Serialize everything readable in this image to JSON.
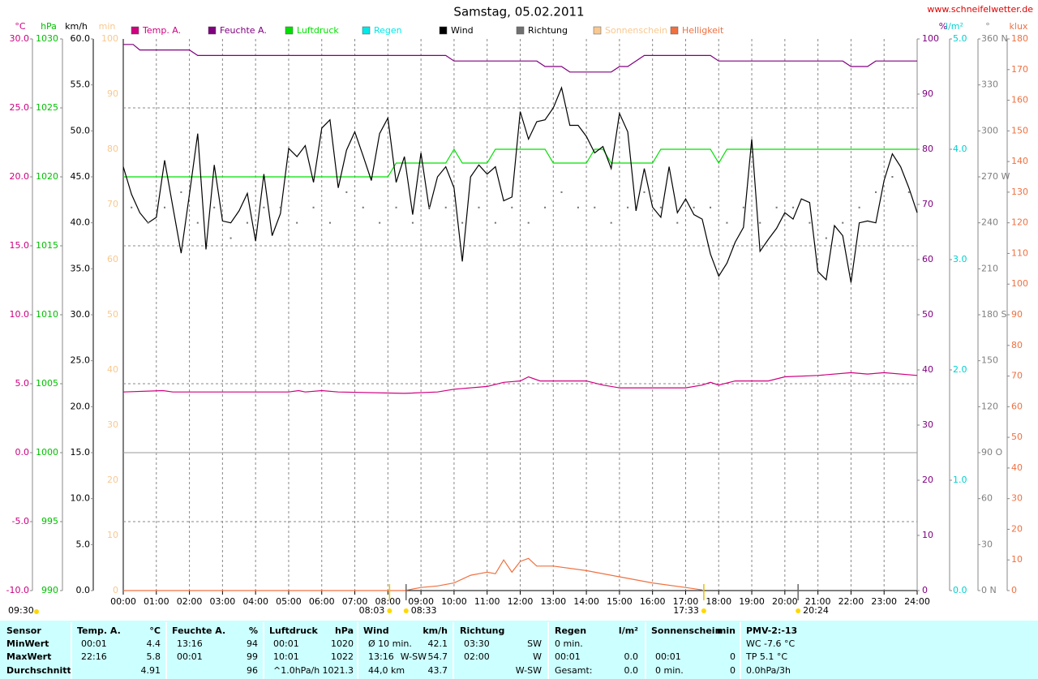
{
  "chart_data": {
    "type": "line",
    "title": "Samstag, 05.02.2011",
    "source": "www.schneifelwetter.de",
    "time_label": "09:30",
    "xlim": [
      0,
      24
    ],
    "xticks": [
      {
        "value": 0,
        "label": "00:00"
      },
      {
        "value": 1,
        "label": "01:00"
      },
      {
        "value": 2,
        "label": "02:00"
      },
      {
        "value": 3,
        "label": "03:00"
      },
      {
        "value": 4,
        "label": "04:00"
      },
      {
        "value": 5,
        "label": "05:00"
      },
      {
        "value": 6,
        "label": "06:00"
      },
      {
        "value": 7,
        "label": "07:00"
      },
      {
        "value": 8,
        "label": "08:00"
      },
      {
        "value": 9,
        "label": "09:00"
      },
      {
        "value": 10,
        "label": "10:00"
      },
      {
        "value": 11,
        "label": "11:00"
      },
      {
        "value": 12,
        "label": "12:00"
      },
      {
        "value": 13,
        "label": "13:00"
      },
      {
        "value": 14,
        "label": "14:00"
      },
      {
        "value": 15,
        "label": "15:00"
      },
      {
        "value": 16,
        "label": "16:00"
      },
      {
        "value": 17,
        "label": "17:00"
      },
      {
        "value": 18,
        "label": "18:00"
      },
      {
        "value": 19,
        "label": "19:00"
      },
      {
        "value": 20,
        "label": "20:00"
      },
      {
        "value": 21,
        "label": "21:00"
      },
      {
        "value": 22,
        "label": "22:00"
      },
      {
        "value": 23,
        "label": "23:00"
      },
      {
        "value": 24,
        "label": "24:00"
      }
    ],
    "grid": true,
    "axes": [
      {
        "unit": "°C",
        "color": "#cc0080",
        "lim": [
          -10,
          30
        ],
        "ticks": [
          {
            "value": 30,
            "label": "30.0"
          },
          {
            "value": 25,
            "label": "25.0"
          },
          {
            "value": 20,
            "label": "20.0"
          },
          {
            "value": 15,
            "label": "15.0"
          },
          {
            "value": 10,
            "label": "10.0"
          },
          {
            "value": 5,
            "label": "5.0"
          },
          {
            "value": 0,
            "label": "0.0"
          },
          {
            "value": -5,
            "label": "-5.0"
          },
          {
            "value": -10,
            "label": "-10.0"
          }
        ]
      },
      {
        "unit": "hPa",
        "color": "#00c000",
        "lim": [
          990,
          1030
        ],
        "ticks": [
          1030,
          1025,
          1020,
          1015,
          1010,
          1005,
          1000,
          995,
          990
        ]
      },
      {
        "unit": "km/h",
        "color": "#000000",
        "lim": [
          0,
          60
        ],
        "ticks": [
          {
            "value": 60,
            "label": "60.0"
          },
          {
            "value": 55,
            "label": "55.0"
          },
          {
            "value": 50,
            "label": "50.0"
          },
          {
            "value": 45,
            "label": "45.0"
          },
          {
            "value": 40,
            "label": "40.0"
          },
          {
            "value": 35,
            "label": "35.0"
          },
          {
            "value": 30,
            "label": "30.0"
          },
          {
            "value": 25,
            "label": "25.0"
          },
          {
            "value": 20,
            "label": "20.0"
          },
          {
            "value": 15,
            "label": "15.0"
          },
          {
            "value": 10,
            "label": "10.0"
          },
          {
            "value": 5,
            "label": "5.0"
          },
          {
            "value": 0,
            "label": "0.0"
          }
        ]
      },
      {
        "unit": "min",
        "color": "#f8c890",
        "lim": [
          0,
          100
        ],
        "ticks": [
          100,
          90,
          80,
          70,
          60,
          50,
          40,
          30,
          20,
          10,
          0
        ]
      },
      {
        "unit": "%",
        "color": "#800080",
        "lim": [
          0,
          100
        ],
        "ticks": [
          100,
          90,
          80,
          70,
          60,
          50,
          40,
          30,
          20,
          10,
          0
        ]
      },
      {
        "unit": "l/m²",
        "color": "#00d0d0",
        "lim": [
          0,
          5
        ],
        "ticks": [
          {
            "value": 5,
            "label": "5.0"
          },
          {
            "value": 4,
            "label": "4.0"
          },
          {
            "value": 3,
            "label": "3.0"
          },
          {
            "value": 2,
            "label": "2.0"
          },
          {
            "value": 1,
            "label": "1.0"
          },
          {
            "value": 0,
            "label": "0.0"
          }
        ]
      },
      {
        "unit": "°",
        "color": "#808080",
        "lim": [
          0,
          360
        ],
        "ticks": [
          {
            "value": 360,
            "label": "360 N"
          },
          330,
          300,
          {
            "value": 270,
            "label": "270 W"
          },
          240,
          210,
          {
            "value": 180,
            "label": "180 S"
          },
          150,
          120,
          {
            "value": 90,
            "label": "90 O"
          },
          60,
          30,
          {
            "value": 0,
            "label": "0 N"
          }
        ]
      },
      {
        "unit": "klux",
        "color": "#f07040",
        "lim": [
          0,
          180
        ],
        "ticks": [
          180,
          170,
          160,
          150,
          140,
          130,
          120,
          110,
          100,
          90,
          80,
          70,
          60,
          50,
          40,
          30,
          20,
          10,
          0
        ]
      }
    ],
    "series": [
      {
        "name": "Temp. A.",
        "color": "#d00080",
        "axis": 0,
        "type": "line",
        "x": [
          0,
          1.2,
          1.5,
          5,
          5.3,
          5.5,
          6,
          6.5,
          8.5,
          9.5,
          10,
          11,
          11.5,
          12,
          12.25,
          12.6,
          14,
          14.5,
          15,
          17,
          17.5,
          17.75,
          18,
          18.5,
          19.5,
          20,
          21,
          22,
          22.5,
          23,
          24
        ],
        "values": [
          4.4,
          4.5,
          4.4,
          4.4,
          4.5,
          4.4,
          4.5,
          4.4,
          4.3,
          4.4,
          4.6,
          4.8,
          5.1,
          5.2,
          5.5,
          5.2,
          5.2,
          4.9,
          4.7,
          4.7,
          4.9,
          5.1,
          4.9,
          5.2,
          5.2,
          5.5,
          5.6,
          5.8,
          5.7,
          5.8,
          5.6
        ]
      },
      {
        "name": "Feuchte A.",
        "color": "#800080",
        "axis": 4,
        "type": "line",
        "x": [
          0,
          0.3,
          0.5,
          2,
          2.25,
          9.75,
          10,
          12.5,
          12.75,
          13.25,
          13.5,
          14.75,
          15,
          15.25,
          15.75,
          17.75,
          18,
          21.75,
          22,
          22.5,
          22.75,
          24
        ],
        "values": [
          99,
          99,
          98,
          98,
          97,
          97,
          96,
          96,
          95,
          95,
          94,
          94,
          95,
          95,
          97,
          97,
          96,
          96,
          95,
          95,
          96,
          96
        ]
      },
      {
        "name": "Luftdruck",
        "color": "#00e000",
        "axis": 1,
        "type": "line",
        "x": [
          0,
          8,
          8.25,
          9.75,
          10,
          10.25,
          11,
          11.25,
          12.75,
          13,
          14,
          14.25,
          14.5,
          14.75,
          16,
          16.25,
          17.75,
          18,
          18.25,
          24
        ],
        "values": [
          1020,
          1020,
          1021,
          1021,
          1022,
          1021,
          1021,
          1022,
          1022,
          1021,
          1021,
          1022,
          1022,
          1021,
          1021,
          1022,
          1022,
          1021,
          1022,
          1022
        ]
      },
      {
        "name": "Regen",
        "color": "#00e8e8",
        "axis": 5,
        "type": "line"
      },
      {
        "name": "Wind",
        "color": "#000000",
        "axis": 2,
        "type": "line",
        "x": [
          0,
          0.25,
          0.5,
          0.75,
          1,
          1.25,
          1.5,
          1.75,
          2,
          2.25,
          2.5,
          2.75,
          3,
          3.25,
          3.5,
          3.75,
          4,
          4.25,
          4.5,
          4.75,
          5,
          5.25,
          5.5,
          5.75,
          6,
          6.25,
          6.5,
          6.75,
          7,
          7.25,
          7.5,
          7.75,
          8,
          8.25,
          8.5,
          8.75,
          9,
          9.25,
          9.5,
          9.75,
          10,
          10.25,
          10.5,
          10.75,
          11,
          11.25,
          11.5,
          11.75,
          12,
          12.25,
          12.5,
          12.75,
          13,
          13.25,
          13.5,
          13.75,
          14,
          14.25,
          14.5,
          14.75,
          15,
          15.25,
          15.5,
          15.75,
          16,
          16.25,
          16.5,
          16.75,
          17,
          17.25,
          17.5,
          17.75,
          18,
          18.25,
          18.5,
          18.75,
          19,
          19.25,
          19.5,
          19.75,
          20,
          20.25,
          20.5,
          20.75,
          21,
          21.25,
          21.5,
          21.75,
          22,
          22.25,
          22.5,
          22.75,
          23,
          23.25,
          23.5,
          23.75,
          24
        ],
        "values": [
          46.1,
          43.1,
          41.1,
          40.0,
          40.6,
          46.8,
          41.7,
          36.7,
          43.1,
          49.7,
          37.1,
          46.3,
          40.2,
          40.0,
          41.3,
          43.2,
          38.0,
          45.3,
          38.6,
          41.0,
          48.1,
          47.2,
          48.4,
          44.4,
          50.3,
          51.2,
          43.8,
          47.9,
          49.9,
          47.3,
          44.6,
          49.7,
          51.4,
          44.4,
          47.2,
          40.9,
          47.6,
          41.5,
          45.0,
          46.1,
          43.8,
          35.8,
          45.0,
          46.3,
          45.3,
          46.1,
          42.4,
          42.8,
          52.1,
          49.1,
          51.0,
          51.2,
          52.5,
          54.7,
          50.6,
          50.6,
          49.4,
          47.6,
          48.3,
          45.9,
          51.9,
          49.9,
          41.3,
          45.9,
          41.7,
          40.6,
          46.1,
          41.1,
          42.6,
          40.9,
          40.4,
          36.6,
          34.2,
          35.6,
          37.9,
          39.5,
          49.1,
          36.9,
          38.2,
          39.4,
          41.1,
          40.4,
          42.6,
          42.2,
          34.7,
          33.8,
          39.7,
          38.6,
          33.5,
          40.0,
          40.2,
          40.0,
          44.6,
          47.5,
          46.1,
          43.8,
          41.1
        ]
      },
      {
        "name": "Richtung",
        "color": "#707070",
        "axis": 6,
        "type": "scatter",
        "x": [
          0.25,
          0.75,
          1.25,
          1.75,
          2.25,
          2.75,
          3.25,
          3.75,
          4.25,
          4.75,
          5.25,
          5.75,
          6.25,
          6.75,
          7.25,
          7.75,
          8.25,
          8.75,
          9.25,
          9.75,
          10.25,
          10.75,
          11.25,
          11.75,
          12.25,
          12.75,
          13.25,
          13.75,
          14.25,
          14.75,
          15.25,
          15.75,
          16.25,
          16.75,
          17.25,
          17.75,
          18.25,
          18.75,
          19.25,
          19.75,
          20.25,
          20.75,
          21.25,
          21.75,
          22.25,
          22.75,
          23.25,
          23.75
        ],
        "values": [
          250,
          240,
          250,
          260,
          240,
          250,
          230,
          240,
          250,
          250,
          240,
          250,
          240,
          260,
          250,
          240,
          250,
          240,
          250,
          250,
          240,
          250,
          240,
          250,
          240,
          250,
          260,
          250,
          250,
          240,
          250,
          260,
          250,
          240,
          250,
          250,
          240,
          250,
          240,
          250,
          250,
          240,
          230,
          240,
          250,
          260,
          270,
          260
        ]
      },
      {
        "name": "Sonnenschein",
        "color": "#f8c890",
        "axis": 3,
        "type": "line"
      },
      {
        "name": "Helligkeit",
        "color": "#f07040",
        "axis": 7,
        "type": "line",
        "x": [
          0,
          8.5,
          9,
          9.5,
          10,
          10.5,
          11,
          11.25,
          11.5,
          11.75,
          12,
          12.25,
          12.5,
          13,
          14,
          15,
          16,
          17,
          17.5
        ],
        "values": [
          0,
          0,
          1,
          1.5,
          2.5,
          5,
          6,
          5.5,
          10,
          6,
          9.5,
          10.5,
          8,
          8,
          6.5,
          4.5,
          2.5,
          1,
          0.2
        ]
      }
    ],
    "annotations": [
      {
        "x": 8.05,
        "label": "08:03"
      },
      {
        "x": 8.55,
        "label": "08:33"
      },
      {
        "x": 17.55,
        "label": "17:33"
      },
      {
        "x": 20.4,
        "label": "20:24"
      }
    ]
  },
  "table": {
    "corner": "Sensor",
    "rows": [
      "MinWert",
      "MaxWert",
      "Durchschnitt"
    ],
    "columns": [
      {
        "header": [
          "Temp. A.",
          "°C"
        ],
        "cells": [
          [
            "00:01",
            null,
            "4.4"
          ],
          [
            "22:16",
            null,
            "5.8"
          ],
          [
            null,
            null,
            "4.91"
          ]
        ]
      },
      {
        "header": [
          "Feuchte A.",
          "%"
        ],
        "cells": [
          [
            "13:16",
            null,
            "94"
          ],
          [
            "00:01",
            null,
            "99"
          ],
          [
            null,
            null,
            "96"
          ]
        ]
      },
      {
        "header": [
          "Luftdruck",
          "hPa"
        ],
        "cells": [
          [
            "00:01",
            null,
            "1020"
          ],
          [
            "10:01",
            null,
            "1022"
          ],
          [
            "^1.0hPa/h",
            null,
            "1021.3"
          ]
        ]
      },
      {
        "header": [
          "Wind",
          "km/h"
        ],
        "cells": [
          [
            "Ø 10 min.",
            null,
            "42.1"
          ],
          [
            "13:16",
            "W-SW",
            "54.7"
          ],
          [
            "44,0 km",
            null,
            "43.7"
          ]
        ]
      },
      {
        "header": [
          "Richtung",
          null
        ],
        "cells": [
          [
            "03:30",
            null,
            "SW"
          ],
          [
            "02:00",
            null,
            "W"
          ],
          [
            null,
            null,
            "W-SW"
          ]
        ]
      },
      {
        "header": [
          "Regen",
          "l/m²"
        ],
        "cells": [
          [
            "0 min.",
            null,
            null
          ],
          [
            "00:01",
            null,
            "0.0"
          ],
          [
            "Gesamt:",
            null,
            "0.0"
          ]
        ]
      },
      {
        "header": [
          "Sonnenschein",
          "min"
        ],
        "cells": [
          [
            null,
            null,
            null
          ],
          [
            "00:01",
            null,
            "0"
          ],
          [
            "0 min.",
            null,
            "0"
          ]
        ]
      },
      {
        "header": [
          "PMV-2:-13",
          null
        ],
        "cells": [
          [
            "WC -7.6 °C",
            null,
            null
          ],
          [
            "TP 5.1 °C",
            null,
            null
          ],
          [
            "0.0hPa/3h",
            null,
            null
          ]
        ]
      }
    ]
  }
}
